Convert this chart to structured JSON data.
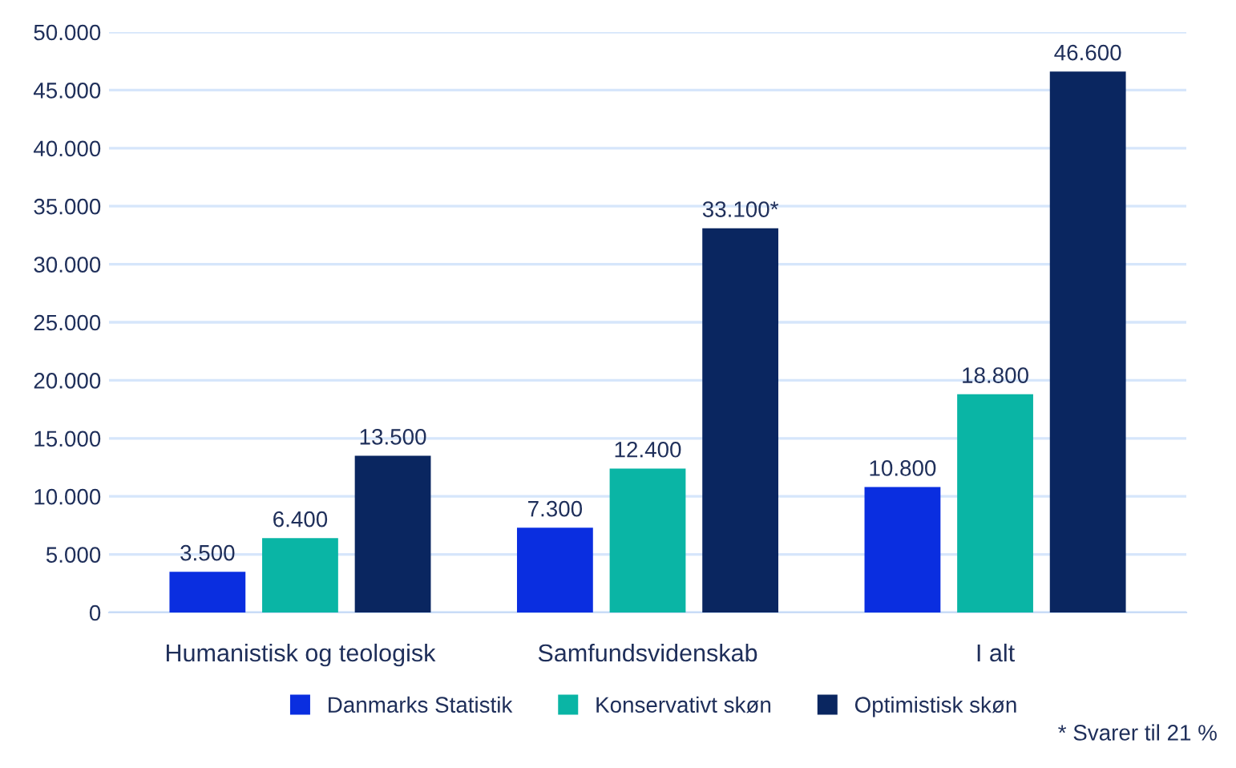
{
  "chart_data": {
    "type": "bar",
    "categories": [
      "Humanistisk og teologisk",
      "Samfundsvidenskab",
      "I alt"
    ],
    "series": [
      {
        "name": "Danmarks Statistik",
        "color": "#0a2ee0",
        "values": [
          3500,
          7300,
          10800
        ],
        "value_labels": [
          "3.500",
          "7.300",
          "10.800"
        ]
      },
      {
        "name": "Konservativt skøn",
        "color": "#0ab5a5",
        "values": [
          6400,
          12400,
          18800
        ],
        "value_labels": [
          "6.400",
          "12.400",
          "18.800"
        ]
      },
      {
        "name": "Optimistisk skøn",
        "color": "#0a2660",
        "values": [
          13500,
          33100,
          46600
        ],
        "value_labels": [
          "13.500",
          "33.100*",
          "46.600"
        ]
      }
    ],
    "ylim": [
      0,
      50000
    ],
    "yticks": [
      {
        "value": 0,
        "label": "0"
      },
      {
        "value": 5000,
        "label": "5.000"
      },
      {
        "value": 10000,
        "label": "10.000"
      },
      {
        "value": 15000,
        "label": "15.000"
      },
      {
        "value": 20000,
        "label": "20.000"
      },
      {
        "value": 25000,
        "label": "25.000"
      },
      {
        "value": 30000,
        "label": "30.000"
      },
      {
        "value": 35000,
        "label": "35.000"
      },
      {
        "value": 40000,
        "label": "40.000"
      },
      {
        "value": 45000,
        "label": "45.000"
      },
      {
        "value": 50000,
        "label": "50.000"
      }
    ],
    "grid": "y",
    "legend": "bottom",
    "annotations": [
      "* Svarer til 21 %"
    ]
  }
}
